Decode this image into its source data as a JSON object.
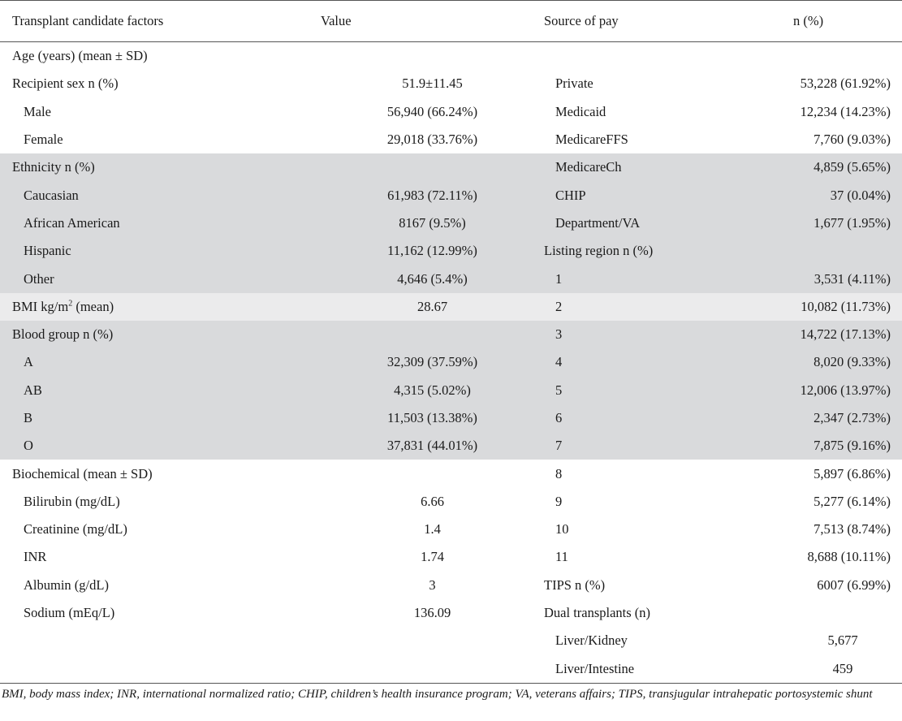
{
  "header": {
    "factors": "Transplant candidate factors",
    "value": "Value",
    "source": "Source of pay",
    "n": "n (%)"
  },
  "rows": [
    {
      "f": "Age (years) (mean ± SD)",
      "v": "",
      "s": "",
      "n": ""
    },
    {
      "f": "Recipient sex n (%)",
      "v": "51.9±11.45",
      "s": "Private",
      "n": "53,228 (61.92%)"
    },
    {
      "f": "Male",
      "v": "56,940 (66.24%)",
      "s": "Medicaid",
      "n": "12,234 (14.23%)"
    },
    {
      "f": "Female",
      "v": "29,018 (33.76%)",
      "s": "MedicareFFS",
      "n": "7,760 (9.03%)"
    },
    {
      "f": "Ethnicity n (%)",
      "v": "",
      "s": "MedicareCh",
      "n": "4,859 (5.65%)"
    },
    {
      "f": "Caucasian",
      "v": "61,983 (72.11%)",
      "s": "CHIP",
      "n": "37 (0.04%)"
    },
    {
      "f": "African American",
      "v": "8167 (9.5%)",
      "s": "Department/VA",
      "n": "1,677 (1.95%)"
    },
    {
      "f": "Hispanic",
      "v": "11,162 (12.99%)",
      "s": "Listing region n (%)",
      "n": ""
    },
    {
      "f": "Other",
      "v": "4,646 (5.4%)",
      "s": "1",
      "n": "3,531 (4.11%)"
    },
    {
      "f": "BMI kg/m",
      "sup": "2",
      "f_tail": " (mean)",
      "v": "28.67",
      "s": "2",
      "n": "10,082 (11.73%)"
    },
    {
      "f": "Blood group n (%)",
      "v": "",
      "s": "3",
      "n": "14,722 (17.13%)"
    },
    {
      "f": "A",
      "v": "32,309 (37.59%)",
      "s": "4",
      "n": "8,020 (9.33%)"
    },
    {
      "f": "AB",
      "v": "4,315 (5.02%)",
      "s": "5",
      "n": "12,006 (13.97%)"
    },
    {
      "f": "B",
      "v": "11,503 (13.38%)",
      "s": "6",
      "n": "2,347 (2.73%)"
    },
    {
      "f": "O",
      "v": "37,831 (44.01%)",
      "s": "7",
      "n": "7,875 (9.16%)"
    },
    {
      "f": "Biochemical (mean ± SD)",
      "v": "",
      "s": "8",
      "n": "5,897 (6.86%)"
    },
    {
      "f": "Bilirubin (mg/dL)",
      "v": "6.66",
      "s": "9",
      "n": "5,277 (6.14%)"
    },
    {
      "f": "Creatinine (mg/dL)",
      "v": "1.4",
      "s": "10",
      "n": "7,513 (8.74%)"
    },
    {
      "f": "INR",
      "v": "1.74",
      "s": "11",
      "n": "8,688 (10.11%)"
    },
    {
      "f": "Albumin (g/dL)",
      "v": "3",
      "s": "TIPS n (%)",
      "n": "6007 (6.99%)"
    },
    {
      "f": "Sodium (mEq/L)",
      "v": "136.09",
      "s": "Dual transplants (n)",
      "n": ""
    },
    {
      "f": "",
      "v": "",
      "s": "Liver/Kidney",
      "n": "5,677"
    },
    {
      "f": "",
      "v": "",
      "s": "Liver/Intestine",
      "n": "459"
    }
  ],
  "footnote": "BMI, body mass index; INR, international normalized ratio; CHIP, children’s health insurance program; VA, veterans affairs; TIPS, transjugular intrahepatic portosystemic shunt"
}
